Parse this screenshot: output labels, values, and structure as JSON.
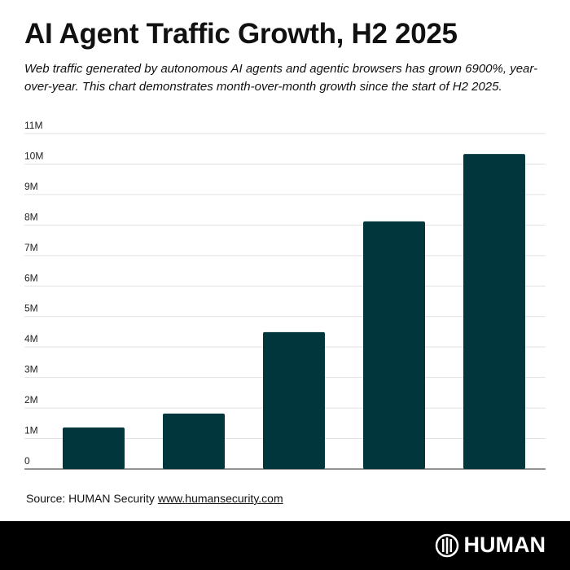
{
  "header": {
    "title": "AI Agent Traffic Growth, H2 2025",
    "subtitle": "Web traffic generated by autonomous AI agents and agentic browsers has grown 6900%, year-over-year. This chart demonstrates month-over-month growth since the start of H2 2025."
  },
  "chart_data": {
    "type": "bar",
    "title": "AI Agent Traffic Growth, H2 2025",
    "categories": [
      "",
      "",
      "",
      "",
      ""
    ],
    "values": [
      1360000,
      1820000,
      4490000,
      8120000,
      10330000
    ],
    "ylim": [
      0,
      11000000
    ],
    "yticks": [
      0,
      1000000,
      2000000,
      3000000,
      4000000,
      5000000,
      6000000,
      7000000,
      8000000,
      9000000,
      10000000,
      11000000
    ],
    "ytick_labels": [
      "0",
      "1M",
      "2M",
      "3M",
      "4M",
      "5M",
      "6M",
      "7M",
      "8M",
      "9M",
      "10M",
      "11M"
    ],
    "grid": true,
    "bar_color": "#02363d",
    "xlabel": "",
    "ylabel": ""
  },
  "footer": {
    "source_label": "Source: HUMAN Security",
    "source_link": "www.humansecurity.com",
    "logo_text": "HUMAN"
  }
}
